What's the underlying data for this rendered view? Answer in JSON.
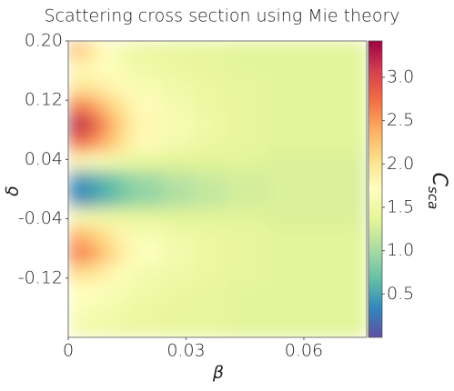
{
  "chart_data": {
    "type": "heatmap",
    "title": "Scattering cross section using Mie theory",
    "xlabel": "β",
    "ylabel": "δ",
    "colorbar_label": {
      "main": "C",
      "sub": "sca"
    },
    "xlim": [
      0,
      0.076
    ],
    "ylim": [
      -0.2,
      0.2
    ],
    "xticks": [
      0,
      0.03,
      0.06
    ],
    "yticks": [
      {
        "value": 0.2,
        "label": "0.20"
      },
      0.12,
      0.04,
      -0.04,
      -0.12
    ],
    "xbins": [
      0,
      0.004,
      0.008,
      0.012,
      0.016,
      0.024,
      0.032,
      0.04,
      0.05,
      0.062,
      0.076
    ],
    "ybins": [
      0.2,
      0.175,
      0.15,
      0.125,
      0.1,
      0.075,
      0.05,
      0.025,
      0,
      -0.025,
      -0.05,
      -0.075,
      -0.1,
      -0.125,
      -0.15,
      -0.175,
      -0.2
    ],
    "z": [
      [
        2.3,
        2.0,
        1.7,
        1.55,
        1.45,
        1.4,
        1.4,
        1.35,
        1.35,
        1.35
      ],
      [
        1.8,
        1.75,
        1.7,
        1.6,
        1.5,
        1.45,
        1.4,
        1.35,
        1.35,
        1.35
      ],
      [
        2.0,
        1.95,
        1.85,
        1.75,
        1.6,
        1.5,
        1.45,
        1.4,
        1.35,
        1.35
      ],
      [
        2.7,
        2.5,
        2.2,
        1.95,
        1.75,
        1.55,
        1.45,
        1.4,
        1.35,
        1.35
      ],
      [
        3.3,
        3.0,
        2.5,
        2.1,
        1.8,
        1.6,
        1.5,
        1.4,
        1.35,
        1.35
      ],
      [
        2.8,
        2.6,
        2.3,
        2.0,
        1.75,
        1.55,
        1.45,
        1.4,
        1.35,
        1.35
      ],
      [
        1.8,
        1.7,
        1.6,
        1.5,
        1.4,
        1.35,
        1.35,
        1.35,
        1.3,
        1.3
      ],
      [
        0.4,
        0.5,
        0.65,
        0.8,
        0.95,
        1.1,
        1.2,
        1.25,
        1.3,
        1.3
      ],
      [
        0.3,
        0.45,
        0.6,
        0.75,
        0.9,
        1.05,
        1.15,
        1.25,
        1.3,
        1.3
      ],
      [
        1.6,
        1.55,
        1.5,
        1.45,
        1.4,
        1.35,
        1.35,
        1.35,
        1.3,
        1.3
      ],
      [
        2.4,
        2.2,
        2.0,
        1.8,
        1.6,
        1.5,
        1.45,
        1.4,
        1.35,
        1.35
      ],
      [
        2.7,
        2.5,
        2.2,
        1.9,
        1.7,
        1.55,
        1.45,
        1.4,
        1.35,
        1.35
      ],
      [
        2.1,
        2.0,
        1.85,
        1.7,
        1.55,
        1.5,
        1.45,
        1.4,
        1.35,
        1.35
      ],
      [
        1.7,
        1.7,
        1.65,
        1.6,
        1.5,
        1.45,
        1.4,
        1.35,
        1.35,
        1.35
      ],
      [
        1.65,
        1.6,
        1.55,
        1.5,
        1.45,
        1.4,
        1.4,
        1.35,
        1.35,
        1.35
      ],
      [
        1.55,
        1.5,
        1.5,
        1.45,
        1.45,
        1.4,
        1.4,
        1.35,
        1.35,
        1.35
      ]
    ],
    "zlim": [
      0,
      3.42
    ],
    "zticks": [
      0.5,
      {
        "value": 1,
        "label": "1.0"
      },
      1.5,
      {
        "value": 2,
        "label": "2.0"
      },
      2.5,
      {
        "value": 3,
        "label": "3.0"
      }
    ],
    "colormap": [
      "#5e4fa2",
      "#3288bd",
      "#66c2a5",
      "#abdda4",
      "#e6f598",
      "#ffffbf",
      "#fee08b",
      "#fdae61",
      "#f46d43",
      "#d53e4f",
      "#9e0142"
    ]
  }
}
